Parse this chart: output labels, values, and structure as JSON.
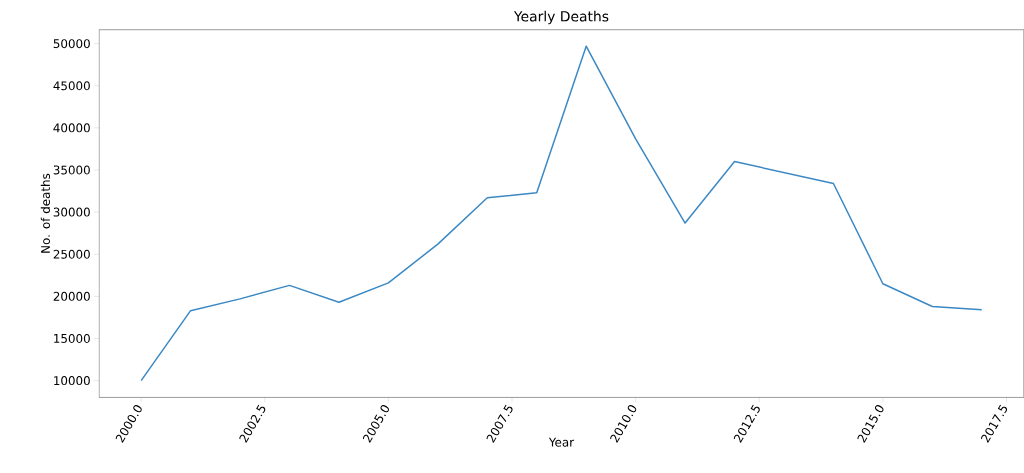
{
  "chart_data": {
    "type": "line",
    "title": "Yearly Deaths",
    "xlabel": "Year",
    "ylabel": "No. of deaths",
    "x": [
      2000,
      2001,
      2002,
      2003,
      2004,
      2005,
      2006,
      2007,
      2008,
      2009,
      2010,
      2011,
      2012,
      2013,
      2014,
      2015,
      2016,
      2017
    ],
    "series": [
      {
        "color": "#3a88c4",
        "values": [
          10000,
          18300,
          19700,
          21300,
          19300,
          21600,
          26200,
          31700,
          32300,
          49700,
          38700,
          28700,
          36000,
          34700,
          33400,
          21500,
          18800,
          18400
        ]
      }
    ],
    "xlim": [
      1999.15,
      2017.85
    ],
    "ylim": [
      8000,
      51650
    ],
    "xticks": [
      {
        "value": 2000,
        "label": "2000.0"
      },
      {
        "value": 2002.5,
        "label": "2002.5"
      },
      {
        "value": 2005,
        "label": "2005.0"
      },
      {
        "value": 2007.5,
        "label": "2007.5"
      },
      {
        "value": 2010,
        "label": "2010.0"
      },
      {
        "value": 2012.5,
        "label": "2012.5"
      },
      {
        "value": 2015,
        "label": "2015.0"
      },
      {
        "value": 2017.5,
        "label": "2017.5"
      }
    ],
    "yticks": [
      10000,
      15000,
      20000,
      25000,
      30000,
      35000,
      40000,
      45000,
      50000
    ],
    "grid": false,
    "marker": "none",
    "line_style": "solid"
  }
}
